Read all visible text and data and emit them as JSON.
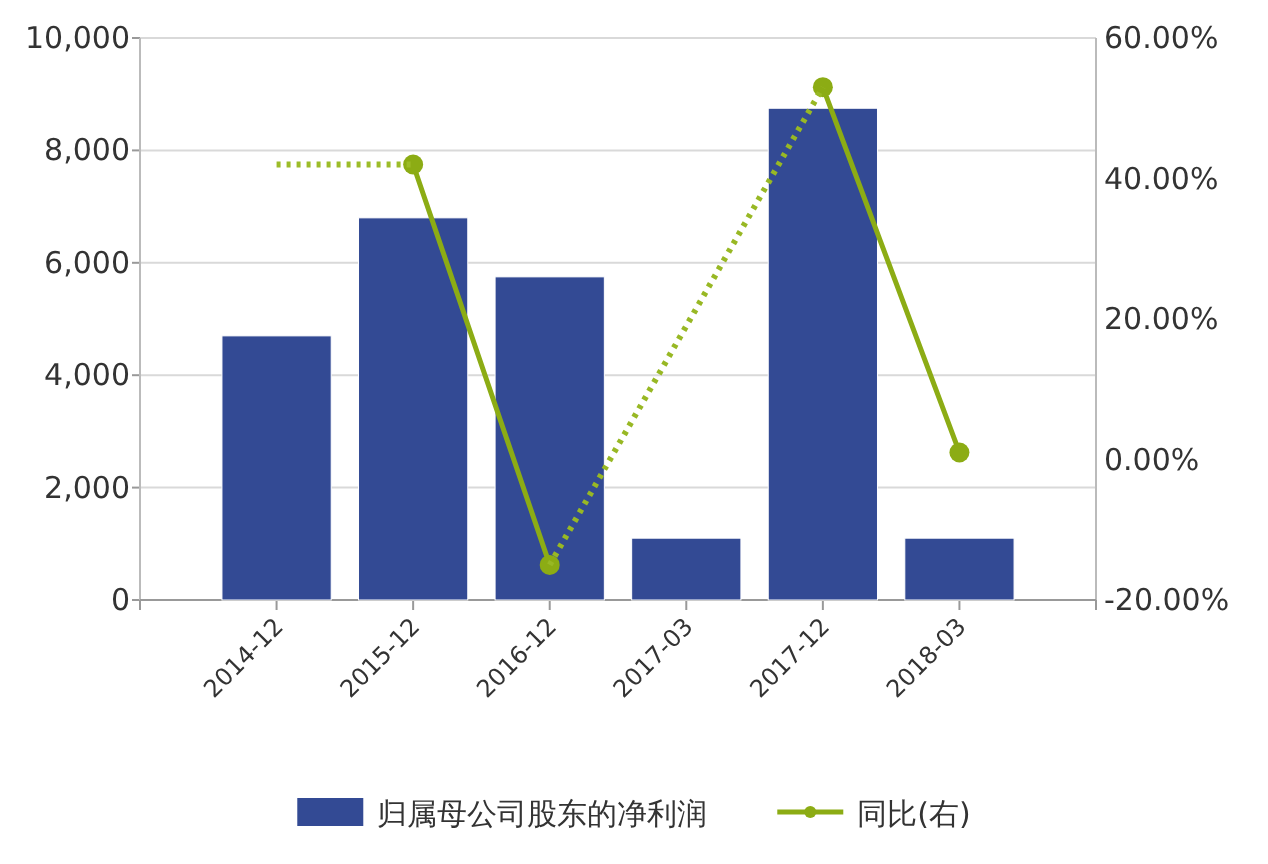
{
  "chart_data": {
    "type": "bar",
    "categories": [
      "2014-12",
      "2015-12",
      "2016-12",
      "2017-03",
      "2017-12",
      "2018-03"
    ],
    "series": [
      {
        "name": "归属母公司股东的净利润",
        "type": "bar",
        "color": "#334a94",
        "values": [
          4700,
          6800,
          5750,
          1100,
          8750,
          1100
        ]
      },
      {
        "name": "同比(右)",
        "type": "line",
        "axis": "y2",
        "color": "#8cac14",
        "marker": "circle",
        "line_style": "solid",
        "values": [
          null,
          42,
          -15,
          null,
          53,
          1
        ]
      },
      {
        "type": "line",
        "axis": "y2",
        "color": "#9cbc28",
        "marker": "none",
        "line_style": "dotted",
        "values": [
          42,
          42,
          null,
          null,
          null,
          null
        ]
      },
      {
        "type": "line",
        "axis": "y2",
        "color": "#98b824",
        "marker": "none",
        "line_style": "dotted",
        "values": [
          null,
          null,
          -15,
          19,
          53,
          null
        ]
      }
    ],
    "ylim": [
      0,
      10000
    ],
    "yticks": [
      {
        "value": 0,
        "label": "0"
      },
      {
        "value": 2000,
        "label": "2,000"
      },
      {
        "value": 4000,
        "label": "4,000"
      },
      {
        "value": 6000,
        "label": "6,000"
      },
      {
        "value": 8000,
        "label": "8,000"
      },
      {
        "value": 10000,
        "label": "10,000"
      }
    ],
    "y2lim": [
      -20,
      60
    ],
    "y2ticks": [
      {
        "value": -20,
        "label": "-20.00%"
      },
      {
        "value": 0,
        "label": "0.00%"
      },
      {
        "value": 20,
        "label": "20.00%"
      },
      {
        "value": 40,
        "label": "40.00%"
      },
      {
        "value": 60,
        "label": "60.00%"
      }
    ],
    "grid": "y",
    "legend": "bottom"
  }
}
